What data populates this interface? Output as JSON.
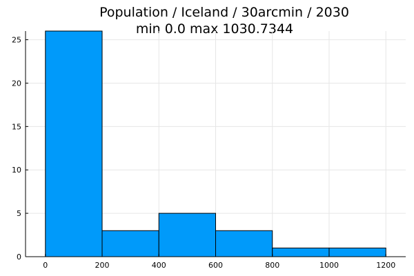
{
  "chart_data": {
    "type": "bar",
    "title": "Population / Iceland / 30arcmin / 2030",
    "subtitle": "min 0.0  max 1030.7344",
    "bin_edges": [
      0,
      200,
      400,
      600,
      800,
      1000,
      1200
    ],
    "values": [
      26,
      3,
      5,
      3,
      1,
      1
    ],
    "xlim": [
      -70,
      1270
    ],
    "ylim": [
      0,
      26
    ],
    "x_ticks": [
      0,
      200,
      400,
      600,
      800,
      1000,
      1200
    ],
    "y_ticks": [
      0,
      5,
      10,
      15,
      20,
      25
    ],
    "bar_color": "#009AFA",
    "grid": true,
    "legend": "none"
  }
}
